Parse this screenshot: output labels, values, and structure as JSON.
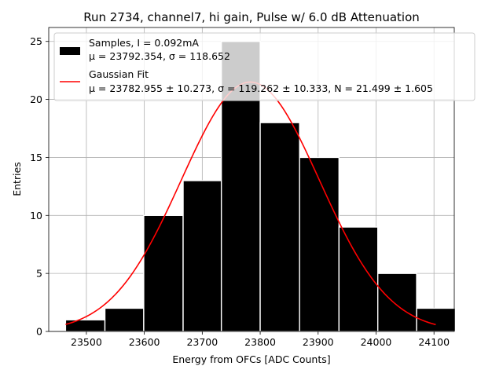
{
  "chart_data": {
    "type": "bar",
    "title": "Run 2734, channel7, hi gain, Pulse w/ 6.0 dB Attenuation",
    "xlabel": "Energy from OFCs [ADC Counts]",
    "ylabel": "Entries",
    "xlim": [
      23435,
      24135
    ],
    "ylim": [
      0,
      26.2
    ],
    "grid": true,
    "legend_position": "top-right",
    "xticks": [
      {
        "value": 23500,
        "label": "23500"
      },
      {
        "value": 23600,
        "label": "23600"
      },
      {
        "value": 23700,
        "label": "23700"
      },
      {
        "value": 23800,
        "label": "23800"
      },
      {
        "value": 23900,
        "label": "23900"
      },
      {
        "value": 24000,
        "label": "24000"
      },
      {
        "value": 24100,
        "label": "24100"
      }
    ],
    "yticks": [
      {
        "value": 0,
        "label": "0"
      },
      {
        "value": 5,
        "label": "5"
      },
      {
        "value": 10,
        "label": "10"
      },
      {
        "value": 15,
        "label": "15"
      },
      {
        "value": 20,
        "label": "20"
      },
      {
        "value": 25,
        "label": "25"
      }
    ],
    "bins": {
      "edges": [
        23464,
        23532,
        23599,
        23667,
        23733,
        23800,
        23868,
        23936,
        24003,
        24070,
        24137
      ],
      "counts": [
        1,
        2,
        10,
        13,
        25,
        18,
        15,
        9,
        5,
        2
      ]
    },
    "fit": {
      "mu": 23782.955,
      "sigma": 119.262,
      "N": 21.499,
      "x_range": [
        23464,
        24103
      ]
    },
    "legend": [
      {
        "label_line1": "Samples, I = 0.092mA",
        "label_line2": "μ = 23792.354, σ = 118.652",
        "color": "#000000",
        "kind": "patch"
      },
      {
        "label_line1": "Gaussian Fit",
        "label_line2": "μ = 23782.955 ± 10.273, σ = 119.262 ± 10.333, N = 21.499 ± 1.605",
        "color": "#ff0000",
        "kind": "line"
      }
    ]
  }
}
